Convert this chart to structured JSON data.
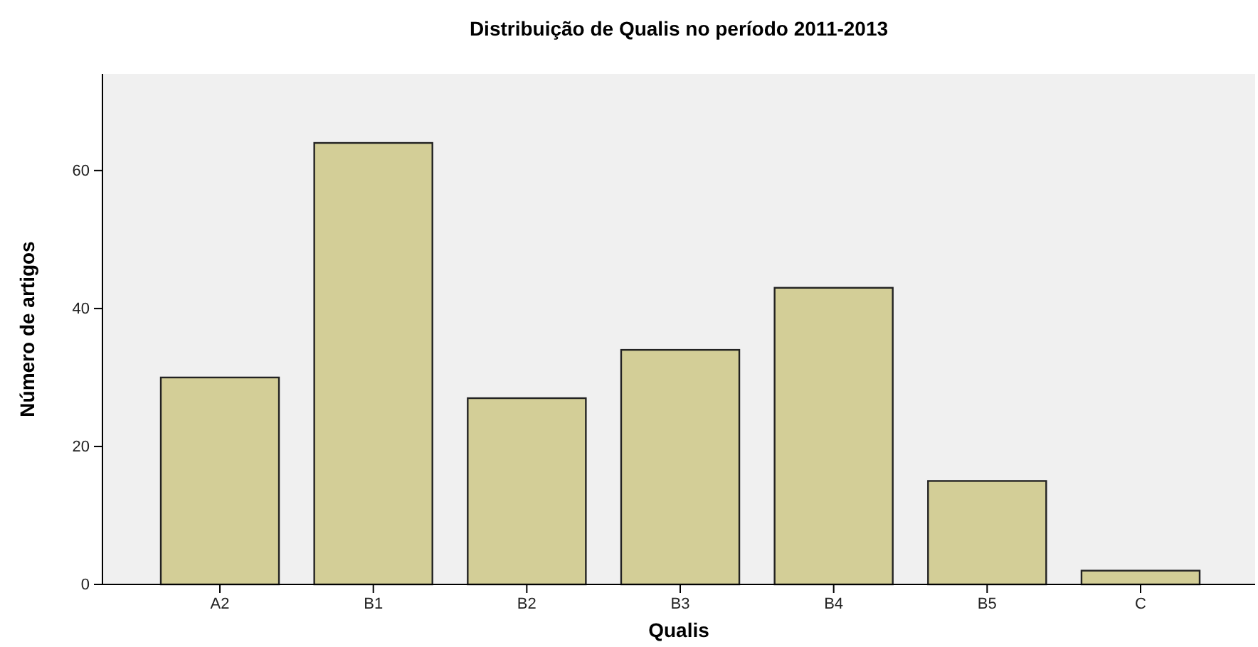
{
  "chart_data": {
    "type": "bar",
    "title": "Distribuição de Qualis no período 2011-2013",
    "xlabel": "Qualis",
    "ylabel": "Número de artigos",
    "categories": [
      "A2",
      "B1",
      "B2",
      "B3",
      "B4",
      "B5",
      "C"
    ],
    "values": [
      30,
      64,
      27,
      34,
      43,
      15,
      2
    ],
    "color": "#d3ce97",
    "ylim": [
      0,
      74
    ],
    "yticks": [
      0,
      20,
      40,
      60
    ]
  }
}
